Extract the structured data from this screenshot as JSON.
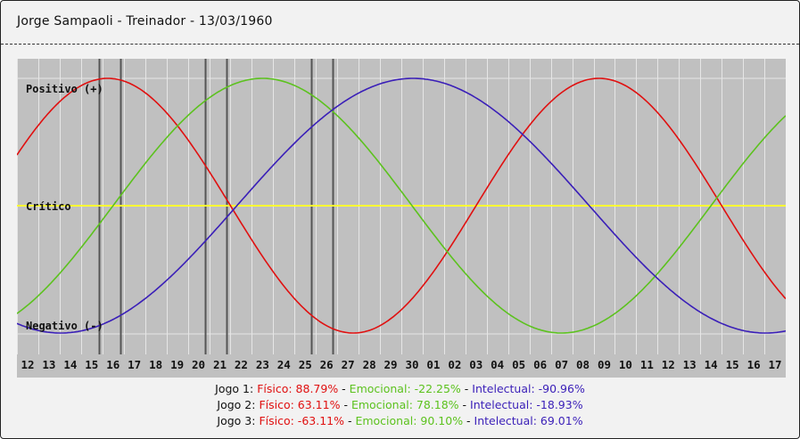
{
  "header": {
    "title": "Jorge Sampaoli - Treinador - 13/03/1960"
  },
  "chart_data": {
    "type": "line",
    "labels": {
      "positive": "Positivo (+)",
      "critical": "Crítico",
      "negative": "Negativo (-)"
    },
    "x_labels": [
      "12",
      "13",
      "14",
      "15",
      "16",
      "17",
      "18",
      "19",
      "20",
      "21",
      "22",
      "23",
      "24",
      "25",
      "26",
      "27",
      "28",
      "29",
      "30",
      "01",
      "02",
      "03",
      "04",
      "05",
      "06",
      "07",
      "08",
      "09",
      "10",
      "11",
      "12",
      "13",
      "14",
      "15",
      "16",
      "17"
    ],
    "ylim": [
      -1,
      1
    ],
    "series": [
      {
        "name": "Físico",
        "color": "#e01010",
        "period": 23,
        "phase_day": -1.5
      },
      {
        "name": "Emocional",
        "color": "#5cc21e",
        "period": 28,
        "phase_day": 4.5
      },
      {
        "name": "Intelectual",
        "color": "#3a1fb8",
        "period": 33,
        "phase_day": 10.3
      }
    ],
    "critical_line_color": "#ffff33",
    "event_markers_days": [
      3.85,
      4.85,
      8.8,
      9.8,
      13.8,
      14.8
    ]
  },
  "games": [
    {
      "label": "Jogo 1:",
      "fisico": "Físico: 88.79%",
      "emocional": "Emocional: -22.25%",
      "intelectual": "Intelectual: -90.96%"
    },
    {
      "label": "Jogo 2:",
      "fisico": "Físico: 63.11%",
      "emocional": "Emocional: 78.18%",
      "intelectual": "Intelectual: -18.93%"
    },
    {
      "label": "Jogo 3:",
      "fisico": "Físico: -63.11%",
      "emocional": "Emocional: 90.10%",
      "intelectual": "Intelectual: 69.01%"
    }
  ],
  "separator": " - "
}
